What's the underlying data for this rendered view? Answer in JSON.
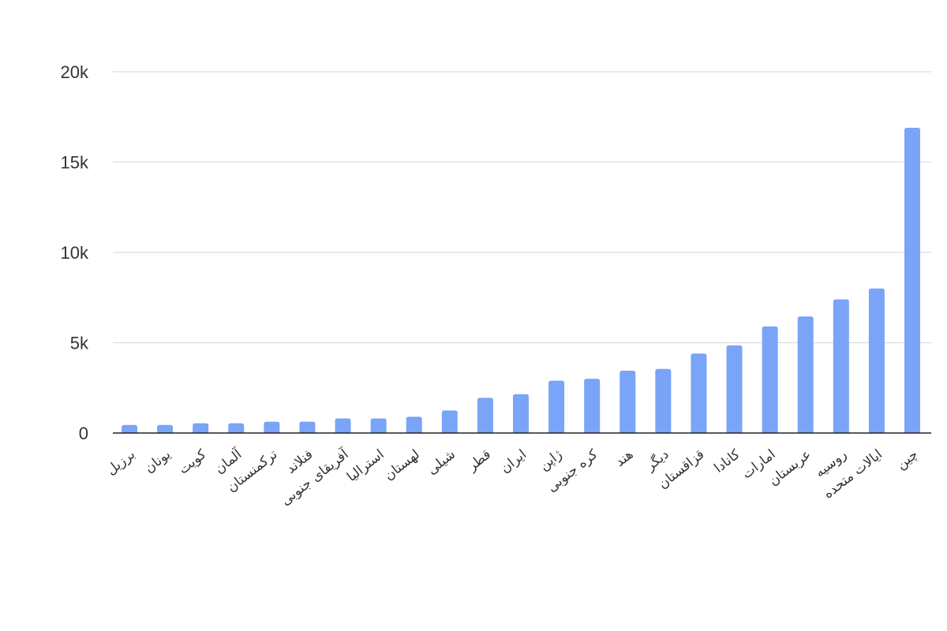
{
  "colors": {
    "bar": "#79a4f7",
    "grid": "#dddddd",
    "axis": "#222222",
    "text": "#333333",
    "background": "#ffffff"
  },
  "chart_data": {
    "type": "bar",
    "title": "",
    "xlabel": "",
    "ylabel": "",
    "ylim": [
      0,
      20000
    ],
    "grid": true,
    "legend": "none",
    "y_ticks": [
      0,
      5000,
      10000,
      15000,
      20000
    ],
    "y_tick_labels": [
      "0",
      "5k",
      "10k",
      "15k",
      "20k"
    ],
    "categories": [
      "برزیل",
      "یونان",
      "کویت",
      "آلمان",
      "ترکمنستان",
      "فنلاند",
      "آفریقای جنوبی",
      "استرالیا",
      "لهستان",
      "شیلی",
      "قطر",
      "ایران",
      "ژاپن",
      "کره جنوبی",
      "هند",
      "دیگر",
      "قزاقستان",
      "کانادا",
      "امارات",
      "عربستان",
      "روسیه",
      "ایالات متحده",
      "چین"
    ],
    "values": [
      450,
      450,
      540,
      540,
      630,
      630,
      810,
      810,
      900,
      1250,
      1950,
      2150,
      2900,
      3000,
      3450,
      3550,
      4400,
      4850,
      5900,
      6450,
      7400,
      8000,
      16900
    ]
  }
}
